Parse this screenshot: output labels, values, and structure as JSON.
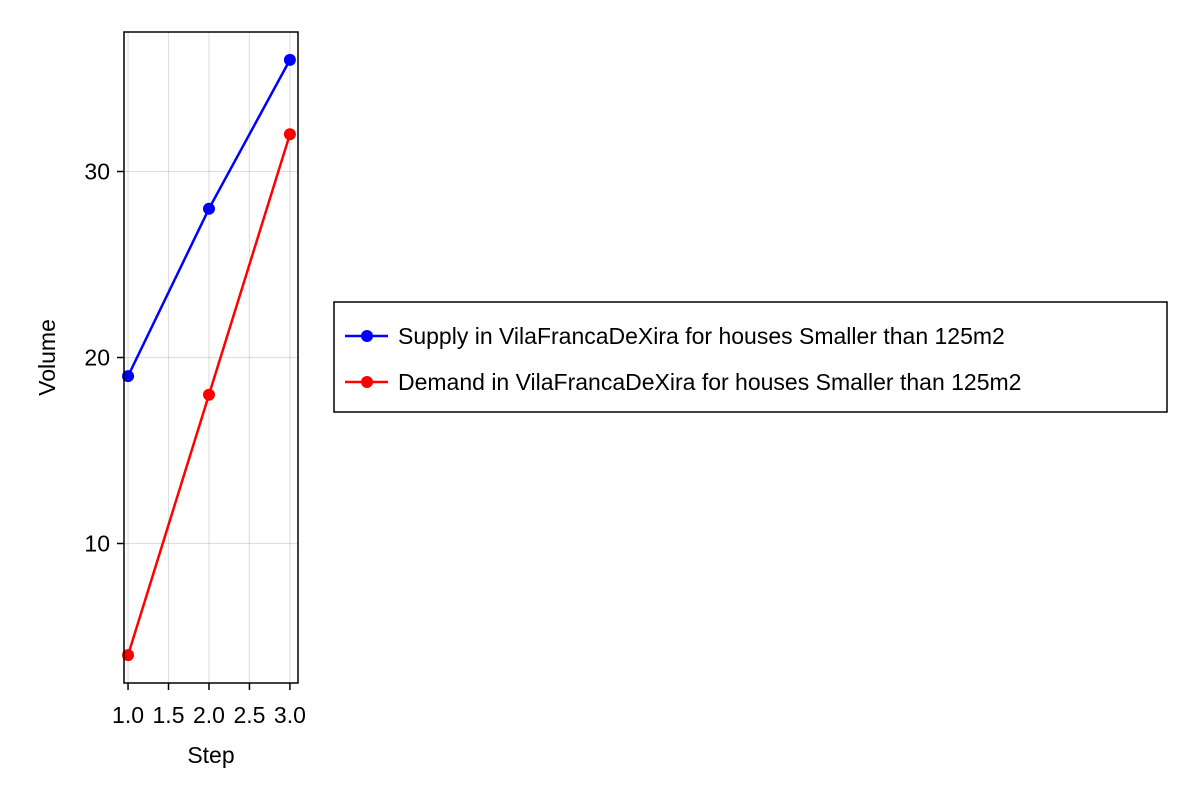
{
  "chart_data": {
    "type": "line",
    "title": "",
    "xlabel": "Step",
    "ylabel": "Volume",
    "x": [
      1.0,
      2.0,
      3.0
    ],
    "xlim": [
      0.95,
      3.1
    ],
    "ylim": [
      2.5,
      37.5
    ],
    "xticks": [
      1.0,
      1.5,
      2.0,
      2.5,
      3.0
    ],
    "xtick_labels": [
      "1.0",
      "1.5",
      "2.0",
      "2.5",
      "3.0"
    ],
    "yticks": [
      10,
      20,
      30
    ],
    "ytick_labels": [
      "10",
      "20",
      "30"
    ],
    "grid": true,
    "legend_position": "right",
    "series": [
      {
        "name": "Supply in VilaFrancaDeXira for houses Smaller than 125m2",
        "color": "#0000ff",
        "marker": "circle",
        "values": [
          19,
          28,
          36
        ]
      },
      {
        "name": "Demand in VilaFrancaDeXira for houses Smaller than 125m2",
        "color": "#ff0000",
        "marker": "circle",
        "values": [
          4,
          18,
          32
        ]
      }
    ]
  }
}
